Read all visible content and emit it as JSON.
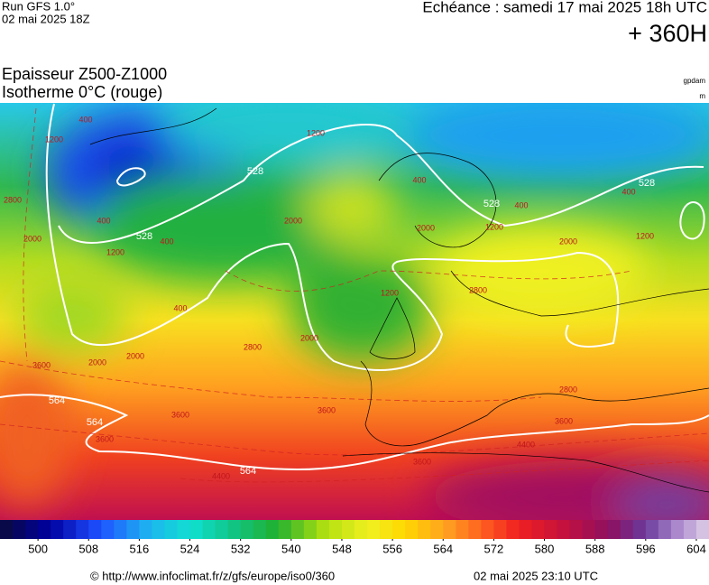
{
  "header": {
    "run": "Run GFS 1.0°",
    "run_date": "02 mai 2025 18Z",
    "valid": "Echéance : samedi 17 mai 2025 18h UTC",
    "lead": "+ 360H"
  },
  "title": {
    "line1": "Epaisseur Z500-Z1000",
    "line2": "Isotherme 0°C (rouge)",
    "unit1": "gpdam",
    "unit2": "m"
  },
  "thickness_labels": [
    "528",
    "528",
    "528",
    "528",
    "564",
    "564",
    "564"
  ],
  "isotherm_labels": [
    "1200",
    "400",
    "1200",
    "400",
    "2000",
    "2000",
    "1200",
    "400",
    "400",
    "2800",
    "2000",
    "2800",
    "2000",
    "1200",
    "400",
    "1200",
    "400",
    "3600",
    "2000",
    "2000",
    "3600",
    "3600",
    "3600",
    "3600",
    "4400",
    "4400",
    "2800",
    "3600",
    "2800",
    "2000",
    "400",
    "1200"
  ],
  "colorbar": {
    "lim": [
      494,
      606
    ],
    "ticks": [
      500,
      508,
      516,
      524,
      532,
      540,
      548,
      556,
      564,
      572,
      580,
      588,
      596,
      604
    ]
  },
  "footer": {
    "source": "© http://www.infoclimat.fr/z/gfs/europe/iso0/360",
    "issued": "02 mai 2025 23:10 UTC"
  }
}
